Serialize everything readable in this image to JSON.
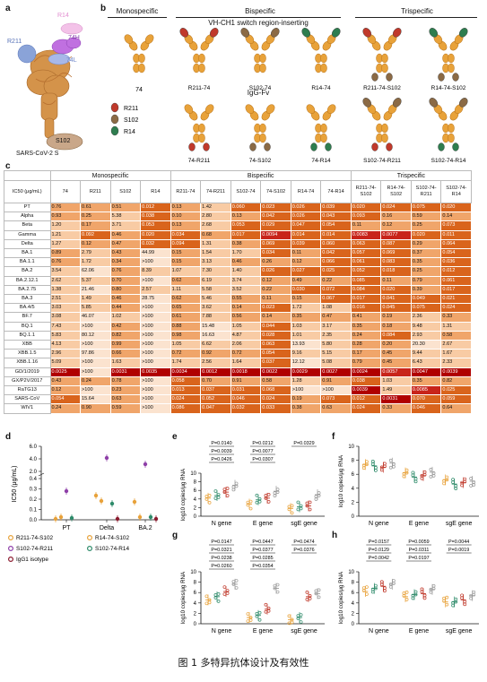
{
  "panel_labels": {
    "a": "a",
    "b": "b",
    "c": "c",
    "d": "d",
    "e": "e",
    "f": "f",
    "g": "g",
    "h": "h"
  },
  "panel_a": {
    "labels": {
      "r14": "R14",
      "h74": "74H",
      "r211": "R211",
      "l74": "74L",
      "s102": "S102",
      "title": "SARS-CoV-2 S"
    }
  },
  "panel_b": {
    "monospecific": "Monospecific",
    "bispecific": "Bispecific",
    "trispecific": "Trispecific",
    "switch_label": "VH-CH1 switch region-inserting",
    "igg_fv": "IgG-Fv",
    "mono_ab": "74",
    "legend": [
      {
        "label": "R211",
        "color": "#c0392b"
      },
      {
        "label": "S102",
        "color": "#8b6a45"
      },
      {
        "label": "R14",
        "color": "#2e7d4f"
      }
    ],
    "bi_top": [
      "R211-74",
      "S102-74",
      "R14-74"
    ],
    "bi_bottom": [
      "74-R211",
      "74-S102",
      "74-R14"
    ],
    "tri_top": [
      "R211-74-S102",
      "R14-74-S102"
    ],
    "tri_bottom": [
      "S102-74-R211",
      "S102-74-R14"
    ]
  },
  "panel_c": {
    "group_headers": [
      "Monospecific",
      "Bispecific",
      "Trispecific"
    ],
    "ic50_label": "IC50 (μg/mL)",
    "columns": [
      "74",
      "R211",
      "S102",
      "R14",
      "R211-74",
      "74-R211",
      "S102-74",
      "74-S102",
      "R14-74",
      "74-R14",
      "R211-74-S102",
      "R14-74-S102",
      "S102-74-R211",
      "S102-74-R14"
    ],
    "rows": [
      {
        "name": "PT",
        "values": [
          "0.76",
          "0.61",
          "0.51",
          "0.012",
          "0.13",
          "1.42",
          "0.060",
          "0.023",
          "0.026",
          "0.039",
          "0.020",
          "0.024",
          "0.075",
          "0.020"
        ]
      },
      {
        "name": "Alpha",
        "values": [
          "0.93",
          "0.25",
          "5.38",
          "0.038",
          "0.10",
          "2.80",
          "0.13",
          "0.042",
          "0.026",
          "0.043",
          "0.093",
          "0.16",
          "0.59",
          "0.14"
        ]
      },
      {
        "name": "Beta",
        "values": [
          "1.20",
          "0.17",
          "3.71",
          "0.053",
          "0.13",
          "2.68",
          "0.053",
          "0.029",
          "0.047",
          "0.054",
          "0.11",
          "0.12",
          "0.25",
          "0.073"
        ]
      },
      {
        "name": "Gamma",
        "values": [
          "1.21",
          "0.092",
          "0.46",
          "0.020",
          "0.034",
          "0.68",
          "0.017",
          "0.0094",
          "0.014",
          "0.014",
          "0.0083",
          "0.0077",
          "0.020",
          "0.011"
        ]
      },
      {
        "name": "Delta",
        "values": [
          "1.27",
          "0.12",
          "0.47",
          "0.032",
          "0.094",
          "1.31",
          "0.38",
          "0.069",
          "0.039",
          "0.060",
          "0.063",
          "0.087",
          "0.29",
          "0.064"
        ]
      },
      {
        "name": "BA.1",
        "values": [
          "0.89",
          "2.79",
          "0.43",
          "44.99",
          "0.15",
          "1.54",
          "1.70",
          "0.034",
          "0.11",
          "0.042",
          "0.057",
          "0.069",
          "0.37",
          "0.054"
        ]
      },
      {
        "name": "BA.1.1",
        "values": [
          "0.76",
          "1.72",
          "0.34",
          ">100",
          "0.15",
          "3.13",
          "0.46",
          "0.26",
          "0.12",
          "0.066",
          "0.061",
          "0.083",
          "0.35",
          "0.036"
        ]
      },
      {
        "name": "BA.2",
        "values": [
          "3.54",
          "62.06",
          "0.76",
          "8.39",
          "1.07",
          "7.30",
          "1.40",
          "0.026",
          "0.027",
          "0.025",
          "0.052",
          "0.018",
          "0.25",
          "0.012"
        ]
      },
      {
        "name": "BA.2.12.1",
        "values": [
          "2.62",
          "5.37",
          "0.70",
          ">100",
          "0.62",
          "6.19",
          "3.74",
          "0.12",
          "0.49",
          "0.22",
          "0.085",
          "0.11",
          "0.79",
          "0.061"
        ]
      },
      {
        "name": "BA.2.75",
        "values": [
          "1.38",
          "21.46",
          "0.80",
          "2.57",
          "1.11",
          "5.58",
          "3.52",
          "0.22",
          "0.030",
          "0.072",
          "0.084",
          "0.020",
          "0.39",
          "0.017"
        ]
      },
      {
        "name": "BA.3",
        "values": [
          "2.51",
          "1.49",
          "0.46",
          "28.75",
          "0.62",
          "5.46",
          "0.55",
          "0.11",
          "0.15",
          "0.067",
          "0.017",
          "0.041",
          "0.049",
          "0.021"
        ]
      },
      {
        "name": "BA.4/5",
        "values": [
          "3.03",
          "5.85",
          "0.44",
          ">100",
          "0.65",
          "3.62",
          "0.14",
          "0.023",
          "1.72",
          "1.08",
          "0.016",
          "0.045",
          "0.075",
          "0.024"
        ]
      },
      {
        "name": "BF.7",
        "values": [
          "3.08",
          "46.07",
          "1.02",
          ">100",
          "0.61",
          "7.88",
          "0.56",
          "0.14",
          "0.35",
          "0.47",
          "0.41",
          "0.19",
          "2.36",
          "0.33"
        ]
      },
      {
        "name": "BQ.1",
        "values": [
          "7.43",
          ">100",
          "0.42",
          ">100",
          "0.88",
          "15.48",
          "1.05",
          "0.044",
          "1.03",
          "3.17",
          "0.35",
          "0.18",
          "9.48",
          "1.31"
        ]
      },
      {
        "name": "BQ.1.1",
        "values": [
          "5.83",
          "80.12",
          "0.82",
          ">100",
          "0.98",
          "16.63",
          "4.87",
          "0.028",
          "1.01",
          "2.35",
          "0.24",
          "0.084",
          "2.93",
          "0.58"
        ]
      },
      {
        "name": "XBB",
        "values": [
          "4.13",
          ">100",
          "0.99",
          ">100",
          "1.05",
          "6.62",
          "2.06",
          "0.063",
          "13.93",
          "5.80",
          "0.28",
          "0.20",
          "20.30",
          "2.67"
        ]
      },
      {
        "name": "XBB.1.5",
        "values": [
          "2.96",
          "97.86",
          "0.66",
          ">100",
          "0.72",
          "0.92",
          "0.72",
          "0.054",
          "9.16",
          "5.15",
          "0.17",
          "0.45",
          "9.44",
          "1.67"
        ]
      },
      {
        "name": "XBB.1.16",
        "values": [
          "5.09",
          ">100",
          "1.63",
          ">100",
          "1.74",
          "2.56",
          "1.64",
          "0.037",
          "12.12",
          "5.08",
          "0.79",
          "0.45",
          "6.43",
          "2.33"
        ]
      },
      {
        "name": "GD/1/2019",
        "values": [
          "0.0025",
          ">100",
          "0.0031",
          "0.0035",
          "0.0034",
          "0.0012",
          "0.0018",
          "0.0022",
          "0.0029",
          "0.0027",
          "0.0024",
          "0.0057",
          "0.0047",
          "0.0039"
        ]
      },
      {
        "name": "GX/P2V/2017",
        "values": [
          "0.43",
          "0.24",
          "0.78",
          ">100",
          "0.058",
          "0.70",
          "0.91",
          "0.58",
          "1.28",
          "0.91",
          "0.038",
          "1.03",
          "0.35",
          "0.82"
        ]
      },
      {
        "name": "RaTG13",
        "values": [
          "0.12",
          ">100",
          "0.23",
          ">100",
          "0.013",
          "0.037",
          "0.031",
          "0.068",
          ">100",
          ">100",
          "0.0039",
          "1.49",
          "0.0085",
          "0.025"
        ]
      },
      {
        "name": "SARS-CoV",
        "values": [
          "0.054",
          "15.64",
          "0.63",
          ">100",
          "0.024",
          "0.052",
          "0.046",
          "0.024",
          "0.19",
          "0.073",
          "0.012",
          "0.0031",
          "0.070",
          "0.059"
        ]
      },
      {
        "name": "WIV1",
        "values": [
          "0.24",
          "0.90",
          "0.59",
          ">100",
          "0.086",
          "0.047",
          "0.032",
          "0.033",
          "0.38",
          "0.63",
          "0.024",
          "0.33",
          "0.046",
          "0.64"
        ]
      }
    ]
  },
  "panel_d": {
    "ylabel": "IC50 (μg/mL)",
    "yticks": [
      "0.0",
      "0.1",
      "0.2",
      "0.3",
      "0.4",
      "2.0",
      "4.0",
      "6.0"
    ],
    "groups": [
      "PT",
      "Delta",
      "BA.2"
    ],
    "legend": [
      {
        "label": "R211-74-S102",
        "color": "#e8a23a"
      },
      {
        "label": "R14-74-S102",
        "color": "#e8a23a"
      },
      {
        "label": "S102-74-R211",
        "color": "#8e3fa8"
      },
      {
        "label": "S102-74-R14",
        "color": "#2e8b6a"
      },
      {
        "label": "IgG1 isotype",
        "color": "#8b1a2e"
      }
    ]
  },
  "panel_plots": {
    "ylabel": "log10 copies/μg RNA",
    "yticks": [
      "0",
      "2",
      "4",
      "6",
      "8",
      "10"
    ],
    "xgroups": [
      "N gene",
      "E gene",
      "sgE gene"
    ],
    "e_pvals": [
      "P=0.0140",
      "P=0.0039",
      "P=0.0426",
      "P=0.0212",
      "P=0.0077",
      "P=0.0307",
      "P=0.0329"
    ],
    "g_pvals": [
      "P=0.0147",
      "P=0.0321",
      "P=0.0238",
      "P=0.0260",
      "P=0.0447",
      "P=0.0377",
      "P=0.0285",
      "P=0.0354",
      "P=0.0474",
      "P=0.0376"
    ],
    "h_pvals": [
      "P=0.0157",
      "P=0.0129",
      "P=0.0042",
      "P=0.0059",
      "P=0.0311",
      "P=0.0197",
      "P=0.0044",
      "P=0.0019"
    ]
  },
  "caption": "图 1  多特异抗体设计及有效性"
}
